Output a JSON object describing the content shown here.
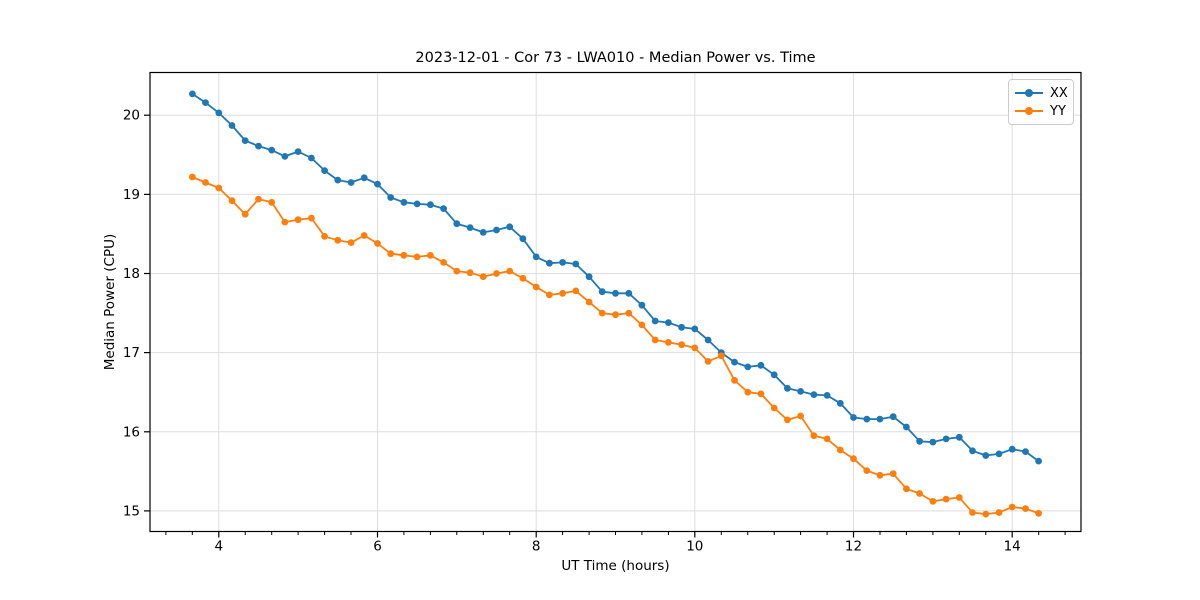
{
  "chart_data": {
    "type": "line",
    "title": "2023-12-01 - Cor 73 - LWA010 - Median Power vs. Time",
    "xlabel": "UT Time (hours)",
    "ylabel": "Median Power (CPU)",
    "xlim": [
      3.133,
      14.867
    ],
    "ylim": [
      14.74,
      20.54
    ],
    "xticks": [
      4,
      6,
      8,
      10,
      12,
      14
    ],
    "yticks": [
      15,
      16,
      17,
      18,
      19,
      20
    ],
    "x_minor_tick_step": 0.3333,
    "grid": "major",
    "grid_color": "#dedede",
    "legend_position": "upper right",
    "marker": "circle",
    "x": [
      3.667,
      3.833,
      4.0,
      4.167,
      4.333,
      4.5,
      4.667,
      4.833,
      5.0,
      5.167,
      5.333,
      5.5,
      5.667,
      5.833,
      6.0,
      6.167,
      6.333,
      6.5,
      6.667,
      6.833,
      7.0,
      7.167,
      7.333,
      7.5,
      7.667,
      7.833,
      8.0,
      8.167,
      8.333,
      8.5,
      8.667,
      8.833,
      9.0,
      9.167,
      9.333,
      9.5,
      9.667,
      9.833,
      10.0,
      10.167,
      10.333,
      10.5,
      10.667,
      10.833,
      11.0,
      11.167,
      11.333,
      11.5,
      11.667,
      11.833,
      12.0,
      12.167,
      12.333,
      12.5,
      12.667,
      12.833,
      13.0,
      13.167,
      13.333,
      13.5,
      13.667,
      13.833,
      14.0,
      14.167,
      14.333
    ],
    "series": [
      {
        "name": "XX",
        "color": "#1f77b4",
        "values": [
          20.27,
          20.16,
          20.03,
          19.87,
          19.68,
          19.61,
          19.56,
          19.48,
          19.54,
          19.46,
          19.3,
          19.18,
          19.15,
          19.21,
          19.13,
          18.96,
          18.9,
          18.88,
          18.87,
          18.82,
          18.63,
          18.58,
          18.52,
          18.55,
          18.59,
          18.44,
          18.21,
          18.13,
          18.14,
          18.12,
          17.96,
          17.77,
          17.75,
          17.75,
          17.6,
          17.4,
          17.38,
          17.32,
          17.3,
          17.16,
          17.0,
          16.88,
          16.82,
          16.84,
          16.72,
          16.55,
          16.51,
          16.47,
          16.46,
          16.36,
          16.18,
          16.16,
          16.16,
          16.19,
          16.06,
          15.88,
          15.87,
          15.91,
          15.93,
          15.76,
          15.7,
          15.72,
          15.78,
          15.75,
          15.63
        ]
      },
      {
        "name": "YY",
        "color": "#ff7f0e",
        "values": [
          19.22,
          19.15,
          19.08,
          18.92,
          18.75,
          18.94,
          18.9,
          18.65,
          18.68,
          18.7,
          18.47,
          18.42,
          18.39,
          18.48,
          18.38,
          18.25,
          18.23,
          18.21,
          18.23,
          18.14,
          18.03,
          18.01,
          17.96,
          18.0,
          18.03,
          17.94,
          17.83,
          17.73,
          17.75,
          17.78,
          17.64,
          17.5,
          17.48,
          17.5,
          17.35,
          17.16,
          17.13,
          17.1,
          17.06,
          16.89,
          16.96,
          16.65,
          16.5,
          16.48,
          16.3,
          16.15,
          16.2,
          15.95,
          15.91,
          15.77,
          15.66,
          15.51,
          15.45,
          15.47,
          15.28,
          15.22,
          15.12,
          15.15,
          15.17,
          14.98,
          14.96,
          14.98,
          15.05,
          15.03,
          14.97
        ]
      }
    ]
  }
}
